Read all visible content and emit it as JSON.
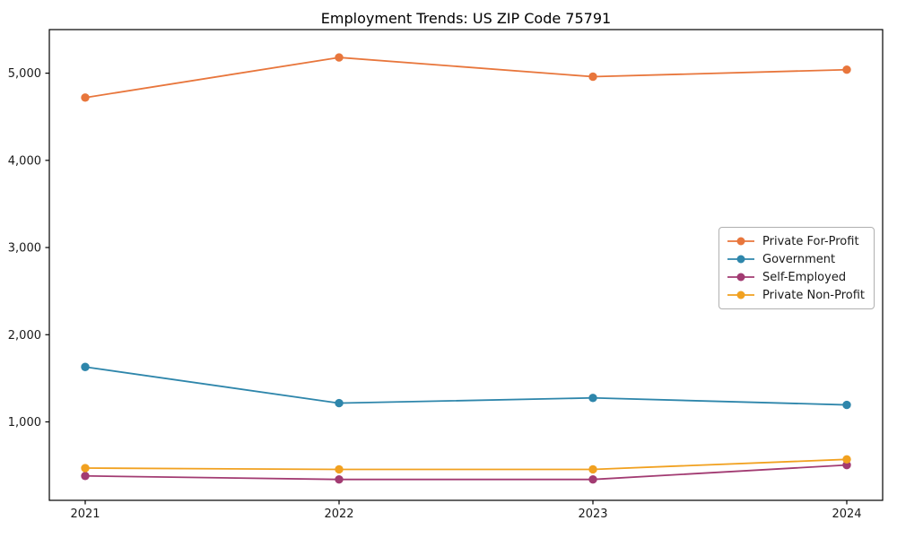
{
  "figure": {
    "background": "#ffffff",
    "spine_color": "#000000",
    "text_color": "#1a1a1a"
  },
  "chart_data": {
    "type": "line",
    "title": "Employment Trends: US ZIP Code 75791",
    "xlabel": "",
    "ylabel": "",
    "x": [
      2021,
      2022,
      2023,
      2024
    ],
    "x_tick_labels": [
      "2021",
      "2022",
      "2023",
      "2024"
    ],
    "y_ticks": [
      1000,
      2000,
      3000,
      4000,
      5000
    ],
    "y_tick_labels": [
      "1,000",
      "2,000",
      "3,000",
      "4,000",
      "5,000"
    ],
    "ylim": [
      100,
      5500
    ],
    "grid": false,
    "legend_position": "center-right",
    "series": [
      {
        "name": "Private For-Profit",
        "color": "#E8763C",
        "values": [
          4720,
          5180,
          4960,
          5040
        ]
      },
      {
        "name": "Government",
        "color": "#2E86AB",
        "values": [
          1630,
          1215,
          1275,
          1195
        ]
      },
      {
        "name": "Self-Employed",
        "color": "#A23B72",
        "values": [
          380,
          340,
          340,
          505
        ]
      },
      {
        "name": "Private Non-Profit",
        "color": "#F1A120",
        "values": [
          470,
          455,
          455,
          570
        ]
      }
    ]
  }
}
